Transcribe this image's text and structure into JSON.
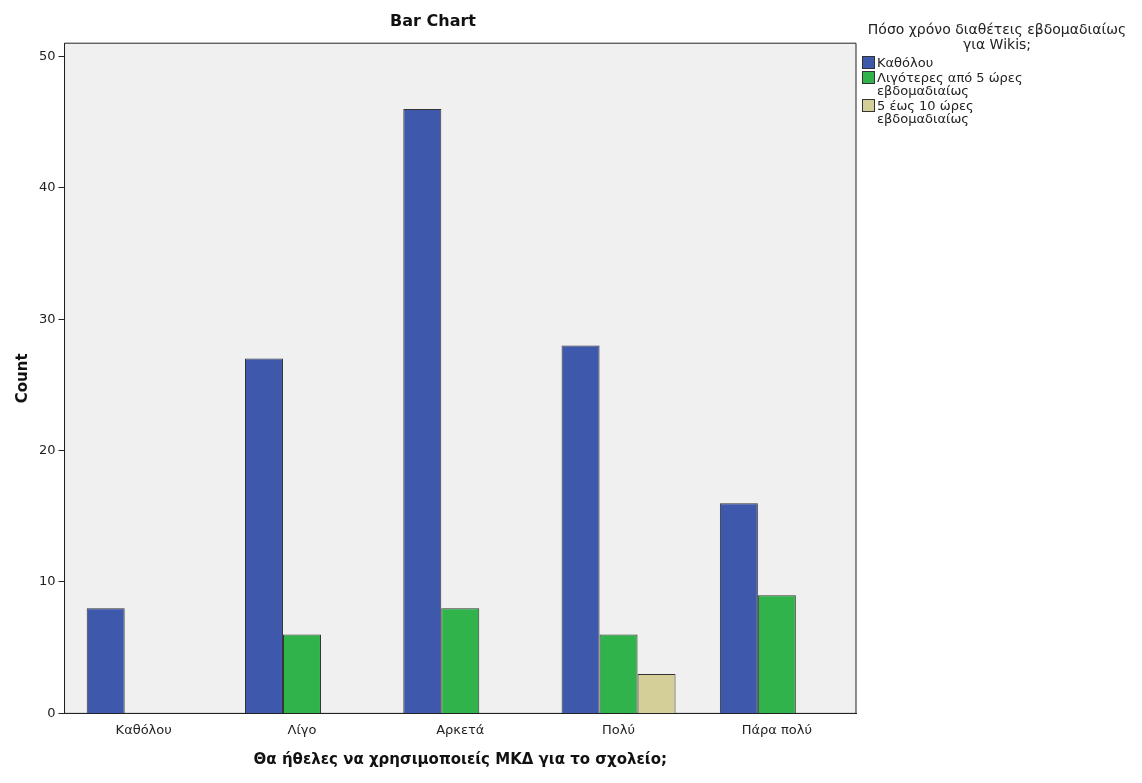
{
  "chart_data": {
    "type": "bar",
    "title": "Bar Chart",
    "xlabel": "Θα ήθελες να χρησιμοποιείς ΜΚΔ για το σχολείο;",
    "ylabel": "Count",
    "legend_title": "Πόσο χρόνο διαθέτεις εβδομαδιαίως για Wikis;",
    "categories": [
      "Καθόλου",
      "Λίγο",
      "Αρκετά",
      "Πολύ",
      "Πάρα πολύ"
    ],
    "series": [
      {
        "name": "Καθόλου",
        "color": "#3e58ac",
        "values": [
          8,
          27,
          46,
          28,
          16
        ]
      },
      {
        "name": "Λιγότερες από 5 ώρες εβδομαδιαίως",
        "color": "#2fb34a",
        "values": [
          null,
          6,
          8,
          6,
          9
        ]
      },
      {
        "name": "5 έως 10 ώρες εβδομαδιαίως",
        "color": "#d4cf98",
        "values": [
          null,
          null,
          null,
          3,
          null
        ]
      }
    ],
    "ylim": [
      0,
      51
    ],
    "yticks": [
      0,
      10,
      20,
      30,
      40,
      50
    ],
    "grid": false,
    "legend": "top right"
  }
}
